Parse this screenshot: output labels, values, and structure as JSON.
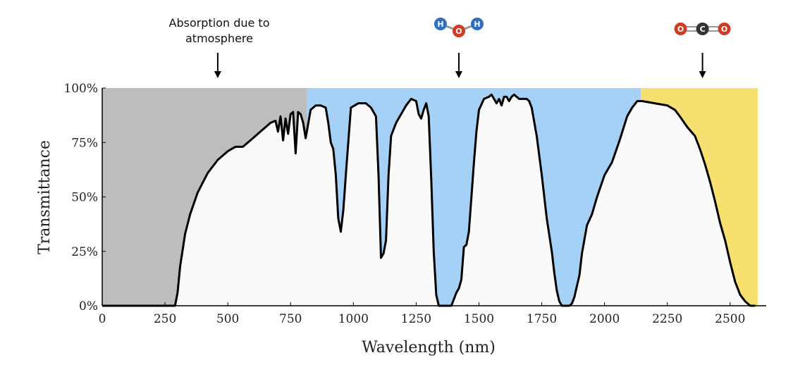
{
  "chart_data": {
    "type": "area",
    "title": "",
    "xlabel": "Wavelength (nm)",
    "ylabel": "Transmittance",
    "xlim": [
      0,
      2610
    ],
    "ylim": [
      0,
      100
    ],
    "x_ticks": [
      0,
      250,
      500,
      750,
      1000,
      1250,
      1500,
      1750,
      2000,
      2250,
      2500
    ],
    "y_ticks": [
      0,
      25,
      50,
      75,
      100
    ],
    "y_tick_labels": [
      "0%",
      "25%",
      "50%",
      "75%",
      "100%"
    ],
    "bands": [
      {
        "name": "Absorption due to atmosphere",
        "x_start": 0,
        "x_end": 815,
        "color": "#bdbdbd"
      },
      {
        "name": "H2O",
        "x_start": 815,
        "x_end": 2145,
        "color": "#a6d1f6"
      },
      {
        "name": "CO2",
        "x_start": 2145,
        "x_end": 2610,
        "color": "#f7e070"
      }
    ],
    "transmittance_color": "#fafafa",
    "series": [
      {
        "x": [
          0,
          290,
          300,
          310,
          330,
          350,
          380,
          420,
          460,
          500,
          530,
          560,
          590,
          610,
          630,
          650,
          670,
          690,
          700,
          710,
          720,
          730,
          740,
          750,
          760,
          770,
          780,
          790,
          800,
          810,
          830,
          850,
          870,
          890,
          900,
          910,
          920,
          930,
          940,
          950,
          960,
          970,
          990,
          1020,
          1050,
          1070,
          1090,
          1100,
          1110,
          1120,
          1130,
          1140,
          1150,
          1170,
          1190,
          1210,
          1230,
          1250,
          1260,
          1270,
          1280,
          1290,
          1300,
          1310,
          1320,
          1330,
          1340,
          1350,
          1360,
          1370,
          1380,
          1390,
          1400,
          1410,
          1420,
          1430,
          1440,
          1450,
          1460,
          1470,
          1480,
          1490,
          1500,
          1520,
          1540,
          1550,
          1560,
          1570,
          1580,
          1590,
          1600,
          1610,
          1620,
          1630,
          1640,
          1650,
          1660,
          1670,
          1680,
          1690,
          1700,
          1710,
          1730,
          1750,
          1770,
          1790,
          1800,
          1810,
          1820,
          1830,
          1840,
          1850,
          1860,
          1870,
          1880,
          1890,
          1900,
          1910,
          1930,
          1950,
          1970,
          2000,
          2030,
          2060,
          2090,
          2110,
          2130,
          2150,
          2200,
          2250,
          2280,
          2300,
          2330,
          2360,
          2380,
          2400,
          2420,
          2440,
          2460,
          2480,
          2500,
          2520,
          2540,
          2560,
          2580,
          2600
        ],
        "y": [
          0,
          0,
          6,
          18,
          33,
          42,
          52,
          61,
          67,
          71,
          73,
          73,
          76,
          78,
          80,
          82,
          84,
          85,
          80,
          87,
          76,
          86,
          79,
          88,
          89,
          70,
          89,
          88,
          84,
          77,
          90,
          92,
          92,
          91,
          84,
          75,
          72,
          60,
          40,
          34,
          44,
          60,
          91,
          93,
          93,
          91,
          87,
          60,
          22,
          24,
          30,
          60,
          78,
          84,
          88,
          92,
          95,
          94,
          88,
          86,
          90,
          93,
          87,
          58,
          25,
          5,
          0,
          0,
          0,
          0,
          0,
          0,
          3,
          6,
          8,
          12,
          27,
          28,
          34,
          50,
          66,
          80,
          90,
          95,
          96,
          97,
          95,
          93,
          95,
          92,
          96,
          96,
          94,
          96,
          97,
          96,
          95,
          95,
          95,
          95,
          94,
          91,
          78,
          60,
          40,
          25,
          15,
          7,
          2,
          0,
          0,
          0,
          0,
          1,
          4,
          9,
          14,
          24,
          37,
          42,
          50,
          60,
          66,
          76,
          87,
          91,
          94,
          94,
          93,
          92,
          90,
          87,
          82,
          78,
          72,
          65,
          57,
          48,
          38,
          30,
          20,
          11,
          5,
          2,
          0,
          0
        ]
      }
    ],
    "annotations": [
      {
        "label": "Absorption due to",
        "label2": "atmosphere",
        "x": 460
      },
      {
        "label": "H2O",
        "x": 1420
      },
      {
        "label": "CO2",
        "x": 2390
      }
    ],
    "molecules": {
      "water": {
        "atoms": [
          "H",
          "O",
          "H"
        ],
        "colors": {
          "H": "#2f6fc1",
          "O": "#d13a25"
        }
      },
      "co2": {
        "atoms": [
          "O",
          "C",
          "O"
        ],
        "colors": {
          "C": "#333333",
          "O": "#d13a25"
        }
      }
    }
  }
}
